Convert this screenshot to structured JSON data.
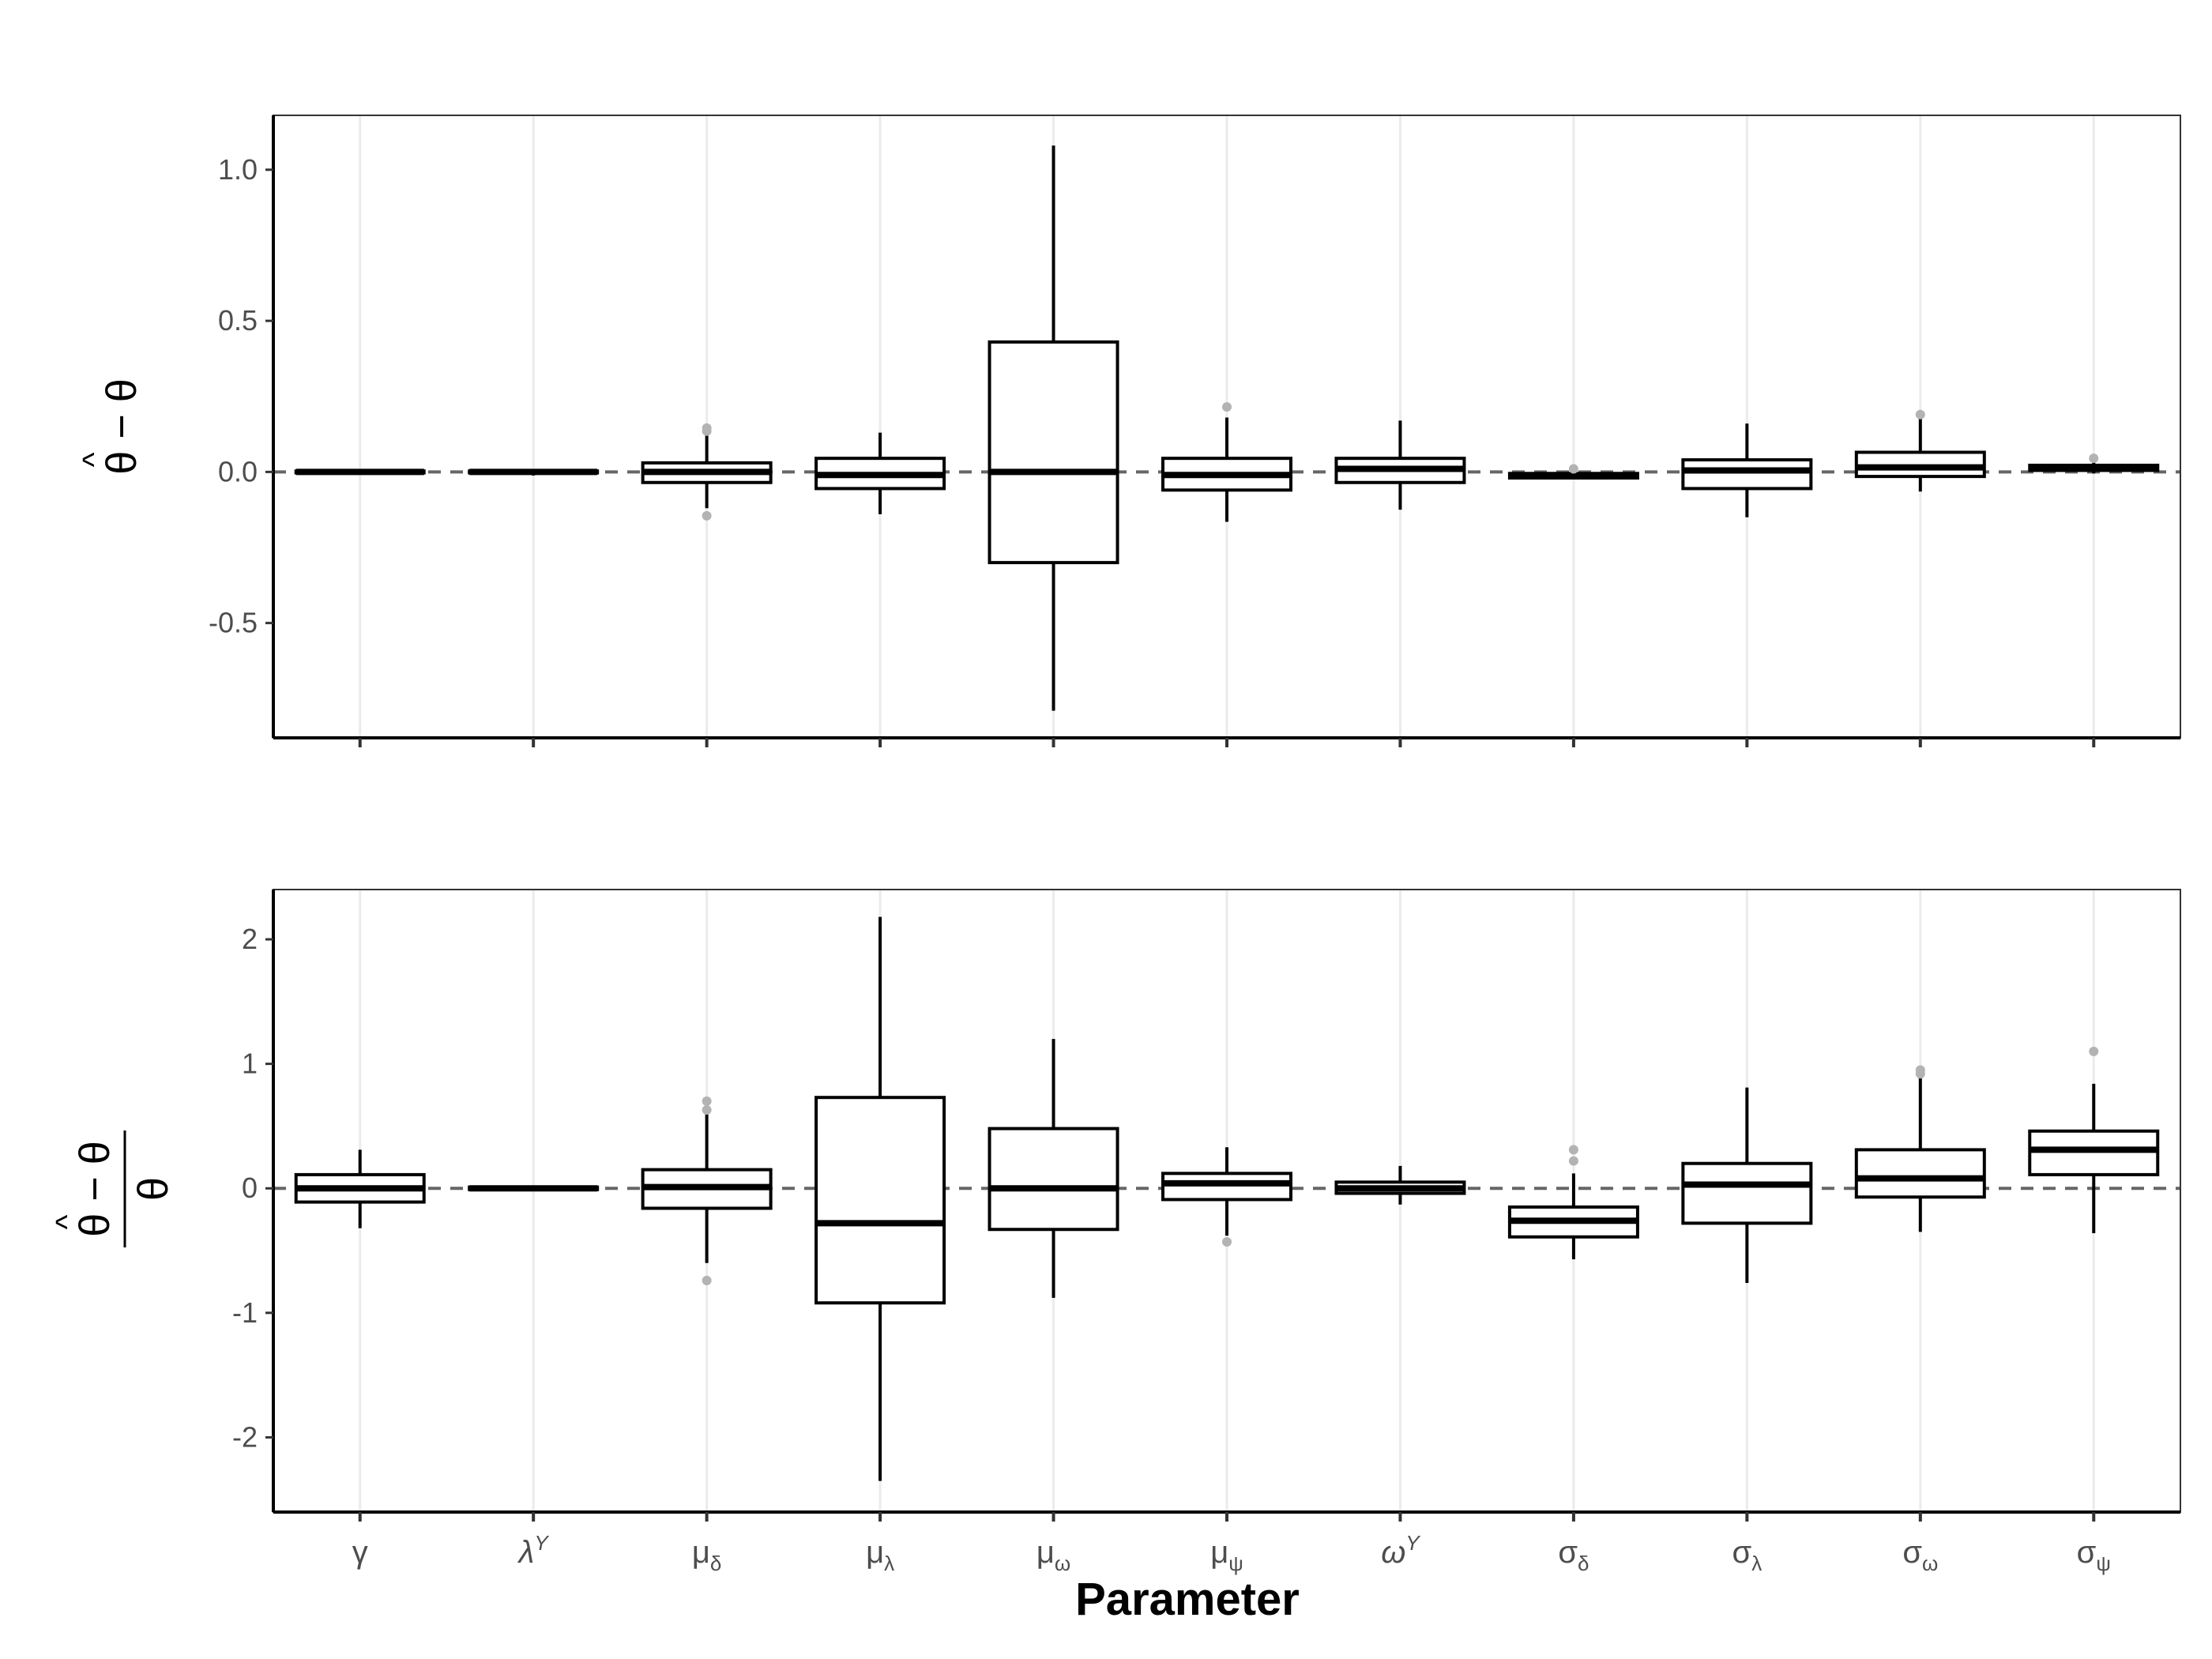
{
  "chart_data": [
    {
      "type": "boxplot",
      "panel": "top",
      "ylabel": "θ̂ − θ",
      "ylim": [
        -0.88,
        1.18
      ],
      "yticks": [
        -0.5,
        0.0,
        0.5,
        1.0
      ],
      "ytick_labels": [
        "-0.5",
        "0.0",
        "0.5",
        "1.0"
      ],
      "grid": "vertical major only",
      "reference_line": 0,
      "categories": [
        "γ",
        "λY",
        "μδ",
        "μλ",
        "μω",
        "μψ",
        "ωY",
        "σδ",
        "σλ",
        "σω",
        "σψ"
      ],
      "boxes": [
        {
          "q1": -0.003,
          "median": 0.0,
          "q3": 0.003,
          "whisker_low": -0.004,
          "whisker_high": 0.004,
          "outliers": []
        },
        {
          "q1": -0.003,
          "median": 0.0,
          "q3": 0.003,
          "whisker_low": -0.012,
          "whisker_high": 0.008,
          "outliers": []
        },
        {
          "q1": -0.035,
          "median": 0.0,
          "q3": 0.03,
          "whisker_low": -0.12,
          "whisker_high": 0.12,
          "outliers": [
            0.135,
            0.145,
            -0.145
          ]
        },
        {
          "q1": -0.055,
          "median": -0.01,
          "q3": 0.045,
          "whisker_low": -0.14,
          "whisker_high": 0.13,
          "outliers": []
        },
        {
          "q1": -0.3,
          "median": 0.0,
          "q3": 0.43,
          "whisker_low": -0.79,
          "whisker_high": 1.08,
          "outliers": []
        },
        {
          "q1": -0.06,
          "median": -0.01,
          "q3": 0.045,
          "whisker_low": -0.165,
          "whisker_high": 0.18,
          "outliers": [
            0.215
          ]
        },
        {
          "q1": -0.035,
          "median": 0.01,
          "q3": 0.045,
          "whisker_low": -0.125,
          "whisker_high": 0.17,
          "outliers": []
        },
        {
          "q1": -0.02,
          "median": -0.012,
          "q3": -0.005,
          "whisker_low": -0.022,
          "whisker_high": 0.005,
          "outliers": [
            0.01
          ]
        },
        {
          "q1": -0.055,
          "median": 0.005,
          "q3": 0.04,
          "whisker_low": -0.15,
          "whisker_high": 0.16,
          "outliers": []
        },
        {
          "q1": -0.015,
          "median": 0.015,
          "q3": 0.065,
          "whisker_low": -0.065,
          "whisker_high": 0.18,
          "outliers": [
            0.19
          ]
        },
        {
          "q1": 0.005,
          "median": 0.015,
          "q3": 0.022,
          "whisker_low": -0.005,
          "whisker_high": 0.035,
          "outliers": [
            0.045
          ]
        }
      ]
    },
    {
      "type": "boxplot",
      "panel": "bottom",
      "ylabel": "(θ̂ − θ) / θ",
      "xlabel": "Parameter",
      "ylim": [
        -2.6,
        2.4
      ],
      "yticks": [
        -2,
        -1,
        0,
        1,
        2
      ],
      "ytick_labels": [
        "-2",
        "-1",
        "0",
        "1",
        "2"
      ],
      "grid": "vertical major only",
      "reference_line": 0,
      "categories": [
        "γ",
        "λY",
        "μδ",
        "μλ",
        "μω",
        "μψ",
        "ωY",
        "σδ",
        "σλ",
        "σω",
        "σψ"
      ],
      "boxes": [
        {
          "q1": -0.11,
          "median": 0.0,
          "q3": 0.11,
          "whisker_low": -0.32,
          "whisker_high": 0.31,
          "outliers": []
        },
        {
          "q1": -0.01,
          "median": 0.0,
          "q3": 0.01,
          "whisker_low": -0.015,
          "whisker_high": 0.015,
          "outliers": []
        },
        {
          "q1": -0.16,
          "median": 0.01,
          "q3": 0.15,
          "whisker_low": -0.6,
          "whisker_high": 0.6,
          "outliers": [
            0.63,
            0.7,
            -0.74
          ]
        },
        {
          "q1": -0.92,
          "median": -0.28,
          "q3": 0.73,
          "whisker_low": -2.35,
          "whisker_high": 2.18,
          "outliers": []
        },
        {
          "q1": -0.33,
          "median": 0.0,
          "q3": 0.48,
          "whisker_low": -0.88,
          "whisker_high": 1.2,
          "outliers": []
        },
        {
          "q1": -0.09,
          "median": 0.04,
          "q3": 0.12,
          "whisker_low": -0.38,
          "whisker_high": 0.33,
          "outliers": [
            -0.43
          ]
        },
        {
          "q1": -0.04,
          "median": 0.0,
          "q3": 0.05,
          "whisker_low": -0.13,
          "whisker_high": 0.18,
          "outliers": []
        },
        {
          "q1": -0.39,
          "median": -0.26,
          "q3": -0.15,
          "whisker_low": -0.57,
          "whisker_high": 0.12,
          "outliers": [
            0.22,
            0.31
          ]
        },
        {
          "q1": -0.28,
          "median": 0.03,
          "q3": 0.2,
          "whisker_low": -0.76,
          "whisker_high": 0.81,
          "outliers": []
        },
        {
          "q1": -0.07,
          "median": 0.08,
          "q3": 0.31,
          "whisker_low": -0.35,
          "whisker_high": 0.9,
          "outliers": [
            0.92,
            0.95
          ]
        },
        {
          "q1": 0.11,
          "median": 0.31,
          "q3": 0.46,
          "whisker_low": -0.36,
          "whisker_high": 0.84,
          "outliers": [
            1.1
          ]
        }
      ]
    }
  ],
  "x_tick_labels": [
    {
      "base": "γ",
      "sub": "",
      "sup": "",
      "italic": false
    },
    {
      "base": "λ",
      "sub": "",
      "sup": "Y",
      "italic": true
    },
    {
      "base": "μ",
      "sub": "δ",
      "sup": "",
      "italic": false
    },
    {
      "base": "μ",
      "sub": "λ",
      "sup": "",
      "italic": false
    },
    {
      "base": "μ",
      "sub": "ω",
      "sup": "",
      "italic": false
    },
    {
      "base": "μ",
      "sub": "ψ",
      "sup": "",
      "italic": false
    },
    {
      "base": "ω",
      "sub": "",
      "sup": "Y",
      "italic": true
    },
    {
      "base": "σ",
      "sub": "δ",
      "sup": "",
      "italic": false
    },
    {
      "base": "σ",
      "sub": "λ",
      "sup": "",
      "italic": false
    },
    {
      "base": "σ",
      "sub": "ω",
      "sup": "",
      "italic": false
    },
    {
      "base": "σ",
      "sub": "ψ",
      "sup": "",
      "italic": false
    }
  ],
  "x_title": "Parameter",
  "colors": {
    "box_stroke": "#000000",
    "box_fill": "#ffffff",
    "outlier": "#b3b3b3",
    "grid": "#ebebeb",
    "reference_line": "#666666",
    "panel_border": "#333333"
  }
}
